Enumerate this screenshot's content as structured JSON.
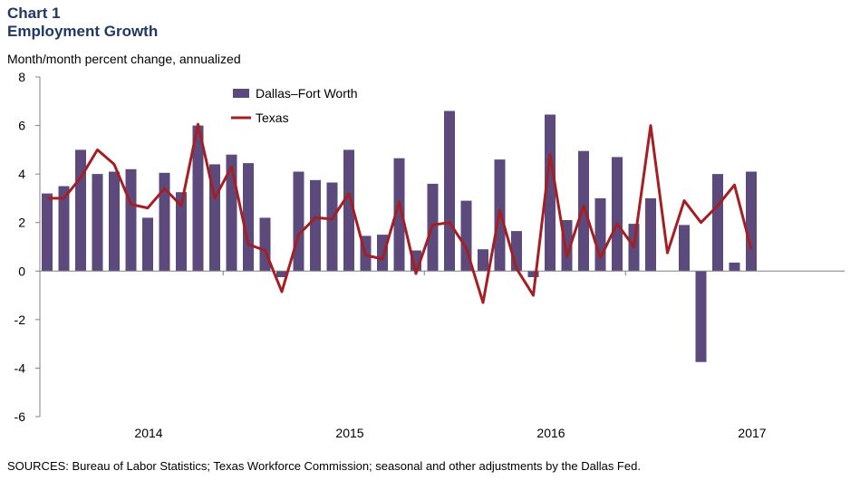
{
  "chart_data": {
    "type": "bar+line",
    "title_line1": "Chart 1",
    "title_line2": "Employment Growth",
    "ylabel": "Month/month  percent change, annualized",
    "ylim": [
      -6,
      8
    ],
    "yticks": [
      -6,
      -4,
      -2,
      0,
      2,
      4,
      6,
      8
    ],
    "year_labels": [
      "2014",
      "2015",
      "2016",
      "2017"
    ],
    "legend_position": "top-left",
    "series": [
      {
        "name": "Dallas–Fort Worth",
        "kind": "bar",
        "color": "#5c4a7d",
        "values": [
          3.2,
          3.5,
          5.0,
          4.0,
          4.1,
          4.2,
          2.2,
          4.05,
          3.25,
          6.0,
          4.4,
          4.8,
          4.45,
          2.2,
          -0.25,
          4.1,
          3.75,
          3.65,
          5.0,
          1.45,
          1.5,
          4.65,
          0.85,
          3.6,
          6.6,
          2.9,
          0.9,
          4.6,
          1.65,
          -0.25,
          6.45,
          2.1,
          4.95,
          3.0,
          4.7,
          1.95,
          3.0,
          0.0,
          1.9,
          -3.75,
          4.0,
          0.35,
          4.1
        ]
      },
      {
        "name": "Texas",
        "kind": "line",
        "color": "#a31f24",
        "values": [
          3.0,
          3.0,
          3.85,
          5.0,
          4.4,
          2.75,
          2.6,
          3.4,
          2.7,
          6.05,
          3.0,
          4.3,
          1.1,
          0.85,
          -0.85,
          1.5,
          2.2,
          2.15,
          3.2,
          0.65,
          0.5,
          2.85,
          -0.1,
          1.9,
          2.0,
          0.95,
          -1.3,
          2.5,
          0.1,
          -1.0,
          4.8,
          0.6,
          2.7,
          0.55,
          1.95,
          1.0,
          6.0,
          0.75,
          2.9,
          2.0,
          2.7,
          3.55,
          0.9
        ]
      }
    ]
  },
  "source": "SOURCES: Bureau of  Labor Statistics; Texas Workforce Commission; seasonal and other adjustments by the Dallas Fed."
}
